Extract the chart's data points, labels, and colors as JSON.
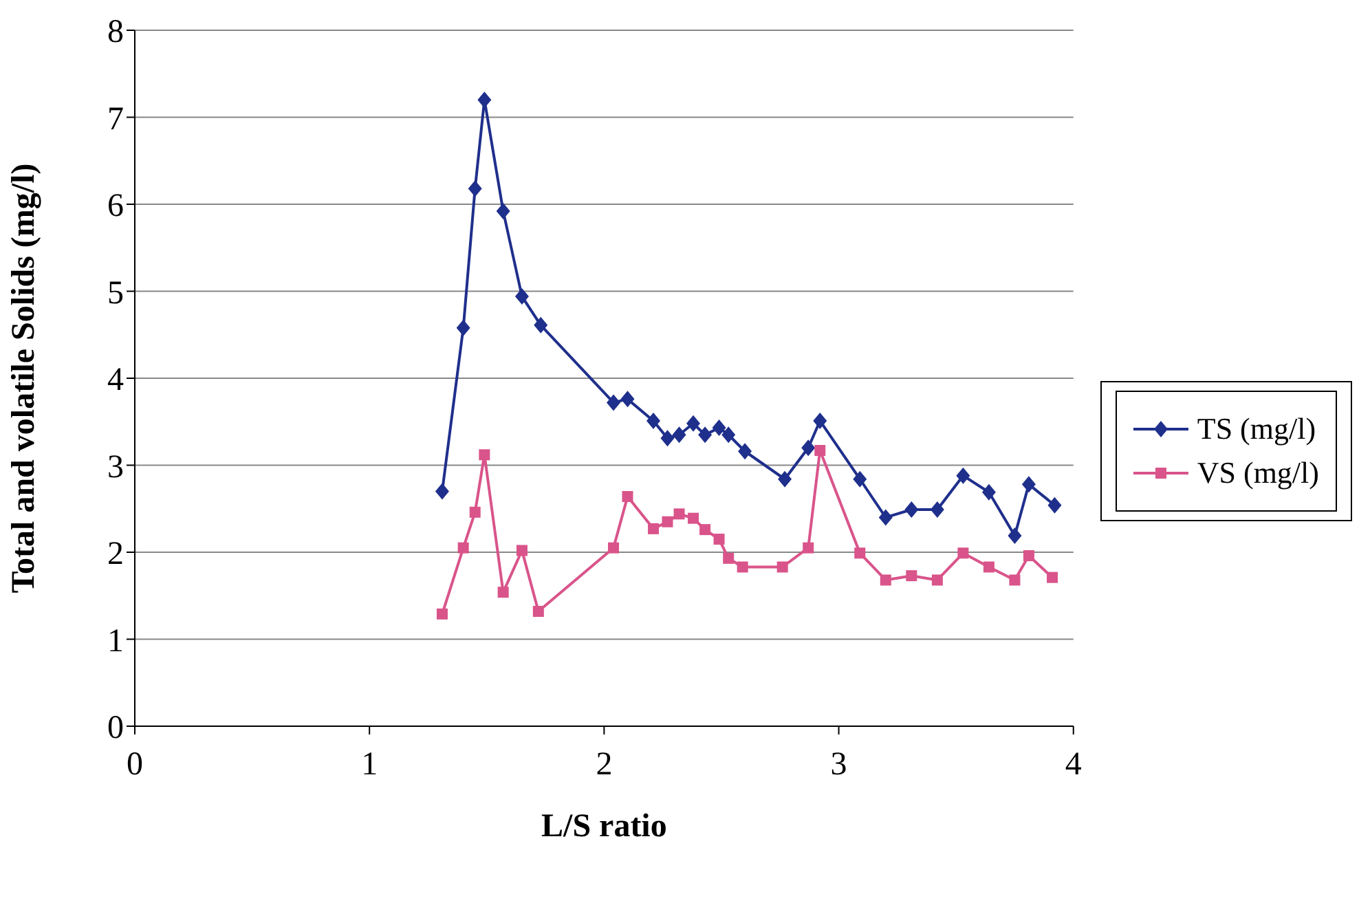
{
  "chart_data": {
    "type": "line",
    "xlabel": "L/S ratio",
    "ylabel": "Total and volatile Solids (mg/l)",
    "xlim": [
      0,
      4
    ],
    "xticks": [
      0,
      1,
      2,
      3,
      4
    ],
    "ylim": [
      0,
      8
    ],
    "yticks": [
      0,
      1,
      2,
      3,
      4,
      5,
      6,
      7,
      8
    ],
    "grid": "y",
    "legend": "right",
    "line_style": "solid",
    "series": [
      {
        "name": "TS (mg/l)",
        "color": "#1f2f8c",
        "marker": "diamond",
        "x": [
          1.31,
          1.4,
          1.45,
          1.49,
          1.57,
          1.65,
          1.73,
          2.04,
          2.1,
          2.21,
          2.27,
          2.32,
          2.38,
          2.43,
          2.49,
          2.53,
          2.6,
          2.77,
          2.87,
          2.92,
          3.09,
          3.2,
          3.31,
          3.42,
          3.53,
          3.64,
          3.75,
          3.81,
          3.92
        ],
        "values": [
          2.7,
          4.58,
          6.18,
          7.2,
          5.92,
          4.94,
          4.61,
          3.72,
          3.76,
          3.51,
          3.31,
          3.35,
          3.48,
          3.35,
          3.43,
          3.35,
          3.16,
          2.84,
          3.2,
          3.51,
          2.84,
          2.4,
          2.49,
          2.49,
          2.88,
          2.69,
          2.19,
          2.78,
          2.54
        ]
      },
      {
        "name": "VS (mg/l)",
        "color": "#d9548a",
        "marker": "square",
        "x": [
          1.31,
          1.4,
          1.45,
          1.49,
          1.57,
          1.65,
          1.72,
          2.04,
          2.1,
          2.21,
          2.27,
          2.32,
          2.38,
          2.43,
          2.49,
          2.53,
          2.59,
          2.76,
          2.87,
          2.92,
          3.09,
          3.2,
          3.31,
          3.42,
          3.53,
          3.64,
          3.75,
          3.81,
          3.91
        ],
        "values": [
          1.29,
          2.05,
          2.46,
          3.12,
          1.54,
          2.02,
          1.32,
          2.05,
          2.64,
          2.27,
          2.35,
          2.44,
          2.39,
          2.26,
          2.15,
          1.93,
          1.83,
          1.83,
          2.05,
          3.17,
          1.99,
          1.68,
          1.73,
          1.68,
          1.99,
          1.83,
          1.68,
          1.96,
          1.71
        ]
      }
    ]
  }
}
